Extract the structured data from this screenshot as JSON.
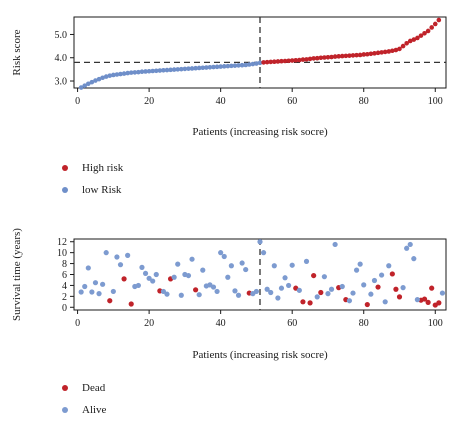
{
  "colors": {
    "high": "#c0232a",
    "low": "#6f8fc9",
    "dead": "#c0232a",
    "alive": "#7d9bd0",
    "axis": "#1a1a1a"
  },
  "chart_data": [
    {
      "type": "scatter",
      "title": "",
      "xlabel": "Patients (increasing risk socre)",
      "ylabel": "Risk score",
      "xlim": [
        -1,
        103
      ],
      "ylim": [
        2.7,
        5.75
      ],
      "xticks": [
        0,
        20,
        40,
        60,
        80,
        100
      ],
      "yticks": [
        3.0,
        4.0,
        5.0
      ],
      "ytick_labels": [
        "3.0",
        "4.0",
        "5.0"
      ],
      "cutoff_x": 51,
      "cutoff_y": 3.8,
      "legend_placement": "below",
      "series": [
        {
          "name": "low Risk",
          "x": [
            1,
            2,
            3,
            4,
            5,
            6,
            7,
            8,
            9,
            10,
            11,
            12,
            13,
            14,
            15,
            16,
            17,
            18,
            19,
            20,
            21,
            22,
            23,
            24,
            25,
            26,
            27,
            28,
            29,
            30,
            31,
            32,
            33,
            34,
            35,
            36,
            37,
            38,
            39,
            40,
            41,
            42,
            43,
            44,
            45,
            46,
            47,
            48,
            49,
            50,
            51
          ],
          "y": [
            2.72,
            2.8,
            2.88,
            2.95,
            3.02,
            3.08,
            3.14,
            3.19,
            3.23,
            3.26,
            3.28,
            3.3,
            3.32,
            3.34,
            3.36,
            3.37,
            3.38,
            3.4,
            3.41,
            3.42,
            3.43,
            3.44,
            3.45,
            3.46,
            3.47,
            3.48,
            3.49,
            3.5,
            3.51,
            3.52,
            3.53,
            3.54,
            3.55,
            3.56,
            3.57,
            3.58,
            3.59,
            3.6,
            3.61,
            3.62,
            3.63,
            3.64,
            3.65,
            3.66,
            3.67,
            3.68,
            3.69,
            3.71,
            3.73,
            3.75,
            3.78
          ]
        },
        {
          "name": "High risk",
          "x": [
            52,
            53,
            54,
            55,
            56,
            57,
            58,
            59,
            60,
            61,
            62,
            63,
            64,
            65,
            66,
            67,
            68,
            69,
            70,
            71,
            72,
            73,
            74,
            75,
            76,
            77,
            78,
            79,
            80,
            81,
            82,
            83,
            84,
            85,
            86,
            87,
            88,
            89,
            90,
            91,
            92,
            93,
            94,
            95,
            96,
            97,
            98,
            99,
            100,
            101
          ],
          "y": [
            3.8,
            3.81,
            3.82,
            3.83,
            3.84,
            3.85,
            3.86,
            3.87,
            3.88,
            3.89,
            3.9,
            3.92,
            3.93,
            3.95,
            3.97,
            3.98,
            4.0,
            4.01,
            4.02,
            4.03,
            4.05,
            4.06,
            4.07,
            4.08,
            4.09,
            4.1,
            4.11,
            4.12,
            4.14,
            4.15,
            4.17,
            4.19,
            4.21,
            4.23,
            4.25,
            4.27,
            4.3,
            4.33,
            4.38,
            4.5,
            4.62,
            4.72,
            4.78,
            4.85,
            4.95,
            5.05,
            5.15,
            5.3,
            5.45,
            5.62
          ]
        }
      ]
    },
    {
      "type": "scatter",
      "title": "",
      "xlabel": "Patients (increasing risk socre)",
      "ylabel": "Survival time (years)",
      "xlim": [
        -1,
        103
      ],
      "ylim": [
        -0.5,
        12.5
      ],
      "xticks": [
        0,
        20,
        40,
        60,
        80,
        100
      ],
      "yticks": [
        0,
        2,
        4,
        6,
        8,
        10,
        12
      ],
      "ytick_labels": [
        "0",
        "2",
        "4",
        "6",
        "8",
        "10",
        "12"
      ],
      "cutoff_x": 51,
      "legend_placement": "below",
      "series": [
        {
          "name": "Dead",
          "x": [
            9,
            13,
            15,
            23,
            26,
            33,
            48,
            61,
            63,
            65,
            66,
            68,
            73,
            75,
            81,
            84,
            88,
            89,
            90,
            96,
            97,
            98,
            99,
            100,
            101
          ],
          "y": [
            1.2,
            5.2,
            0.6,
            3.0,
            5.2,
            3.2,
            2.6,
            3.5,
            1.0,
            0.8,
            5.8,
            2.7,
            3.6,
            1.4,
            0.5,
            3.7,
            6.1,
            3.3,
            1.9,
            1.3,
            1.5,
            0.9,
            3.5,
            0.4,
            0.8
          ]
        },
        {
          "name": "Alive",
          "x": [
            1,
            2,
            3,
            4,
            5,
            6,
            7,
            8,
            10,
            11,
            12,
            14,
            16,
            17,
            18,
            19,
            20,
            21,
            22,
            24,
            25,
            27,
            28,
            29,
            30,
            31,
            32,
            34,
            35,
            36,
            37,
            38,
            39,
            40,
            41,
            42,
            43,
            44,
            45,
            46,
            47,
            49,
            50,
            51,
            52,
            53,
            54,
            55,
            56,
            57,
            58,
            59,
            60,
            62,
            64,
            67,
            69,
            70,
            71,
            72,
            74,
            76,
            77,
            78,
            79,
            80,
            82,
            83,
            85,
            86,
            87,
            91,
            92,
            93,
            94,
            95,
            102
          ],
          "y": [
            2.8,
            3.8,
            7.2,
            2.8,
            4.5,
            2.5,
            4.2,
            10.0,
            2.9,
            9.2,
            7.8,
            9.5,
            3.8,
            4.0,
            7.3,
            6.2,
            5.3,
            4.8,
            6.0,
            2.9,
            2.4,
            5.5,
            7.9,
            2.2,
            6.0,
            5.8,
            8.8,
            2.3,
            6.8,
            3.9,
            4.1,
            3.7,
            2.9,
            10.0,
            9.3,
            5.5,
            7.6,
            3.0,
            2.2,
            8.1,
            6.9,
            2.5,
            2.9,
            12.0,
            10.0,
            3.3,
            2.7,
            7.6,
            1.7,
            3.5,
            5.4,
            4.0,
            7.7,
            3.1,
            8.4,
            1.9,
            5.6,
            2.5,
            3.3,
            11.5,
            3.8,
            1.2,
            2.6,
            6.8,
            7.9,
            4.1,
            2.4,
            4.9,
            5.9,
            1.0,
            7.6,
            3.6,
            10.8,
            11.5,
            8.9,
            1.4,
            2.6
          ]
        }
      ]
    }
  ],
  "legend_top": [
    {
      "label": "High risk",
      "color_key": "high"
    },
    {
      "label": "low Risk",
      "color_key": "low"
    }
  ],
  "legend_bottom": [
    {
      "label": "Dead",
      "color_key": "dead"
    },
    {
      "label": "Alive",
      "color_key": "alive"
    }
  ]
}
